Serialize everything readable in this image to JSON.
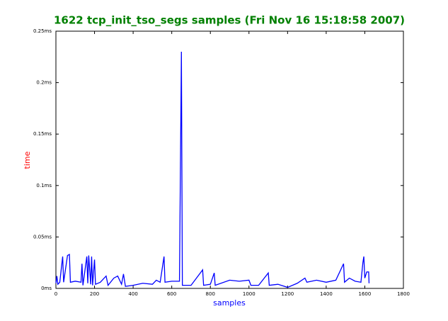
{
  "chart_data": {
    "type": "line",
    "title": "1622 tcp_init_tso_segs samples (Fri Nov 16 15:18:58 2007)",
    "xlabel": "samples",
    "ylabel": "time",
    "title_color": "#008000",
    "xlabel_color": "#0000ff",
    "ylabel_color": "#ff0000",
    "xlim": [
      0,
      1800
    ],
    "xticks": [
      0,
      200,
      400,
      600,
      800,
      1000,
      1200,
      1400,
      1600,
      1800
    ],
    "ylim": [
      0,
      0.25
    ],
    "yticks": [
      {
        "value": 0,
        "label": "0ms"
      },
      {
        "value": 0.05,
        "label": "0.05ms"
      },
      {
        "value": 0.1,
        "label": "0.1ms"
      },
      {
        "value": 0.15,
        "label": "0.15ms"
      },
      {
        "value": 0.2,
        "label": "0.2ms"
      },
      {
        "value": 0.25,
        "label": "0.25ms"
      }
    ],
    "series": [
      {
        "color": "#0000ff",
        "x": [
          0,
          5,
          10,
          20,
          35,
          40,
          60,
          70,
          75,
          100,
          130,
          135,
          140,
          160,
          165,
          170,
          180,
          185,
          190,
          200,
          205,
          230,
          260,
          270,
          300,
          320,
          340,
          350,
          360,
          400,
          450,
          500,
          520,
          540,
          560,
          565,
          600,
          640,
          650,
          655,
          700,
          760,
          765,
          800,
          820,
          825,
          900,
          950,
          1000,
          1010,
          1050,
          1100,
          1105,
          1150,
          1200,
          1250,
          1290,
          1300,
          1350,
          1400,
          1450,
          1490,
          1495,
          1520,
          1550,
          1580,
          1590,
          1595,
          1600,
          1610,
          1620,
          1622
        ],
        "values": [
          0.005,
          0.012,
          0.004,
          0.006,
          0.031,
          0.006,
          0.032,
          0.033,
          0.006,
          0.007,
          0.006,
          0.024,
          0.003,
          0.031,
          0.005,
          0.032,
          0.004,
          0.031,
          0.003,
          0.028,
          0.004,
          0.006,
          0.012,
          0.003,
          0.01,
          0.012,
          0.004,
          0.014,
          0.002,
          0.003,
          0.005,
          0.004,
          0.008,
          0.006,
          0.031,
          0.006,
          0.007,
          0.007,
          0.23,
          0.003,
          0.003,
          0.018,
          0.003,
          0.004,
          0.015,
          0.003,
          0.008,
          0.007,
          0.008,
          0.003,
          0.003,
          0.015,
          0.003,
          0.004,
          0.001,
          0.005,
          0.01,
          0.006,
          0.008,
          0.006,
          0.008,
          0.024,
          0.006,
          0.01,
          0.007,
          0.006,
          0.025,
          0.031,
          0.01,
          0.016,
          0.016,
          0.005
        ]
      }
    ]
  }
}
